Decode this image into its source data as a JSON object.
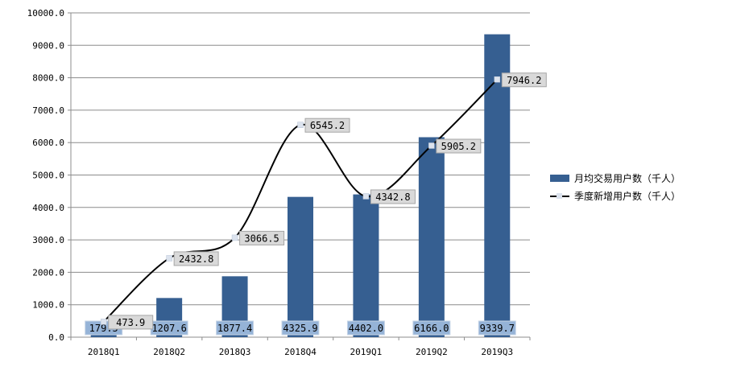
{
  "chart_data": {
    "type": "bar",
    "categories": [
      "2018Q1",
      "2018Q2",
      "2018Q3",
      "2018Q4",
      "2019Q1",
      "2019Q2",
      "2019Q3"
    ],
    "ylim": [
      0,
      10000
    ],
    "yticks": [
      "0.0",
      "1000.0",
      "2000.0",
      "3000.0",
      "4000.0",
      "5000.0",
      "6000.0",
      "7000.0",
      "8000.0",
      "9000.0",
      "10000.0"
    ],
    "grid": true,
    "legend_position": "right",
    "series": [
      {
        "name": "月均交易用户数（千人）",
        "type": "bar",
        "values": [
          179.5,
          1207.6,
          1877.4,
          4325.9,
          4402.0,
          6166.0,
          9339.7
        ],
        "labels": [
          "179.5",
          "1207.6",
          "1877.4",
          "4325.9",
          "4402.0",
          "6166.0",
          "9339.7"
        ],
        "color": "#365f91"
      },
      {
        "name": "季度新增用户数（千人）",
        "type": "line",
        "values": [
          473.9,
          2432.8,
          3066.5,
          6545.2,
          4342.8,
          5905.2,
          7946.2
        ],
        "labels": [
          "473.9",
          "2432.8",
          "3066.5",
          "6545.2",
          "4342.8",
          "5905.2",
          "7946.2"
        ],
        "color": "#000000",
        "marker_color": "#dce3ee"
      }
    ]
  }
}
